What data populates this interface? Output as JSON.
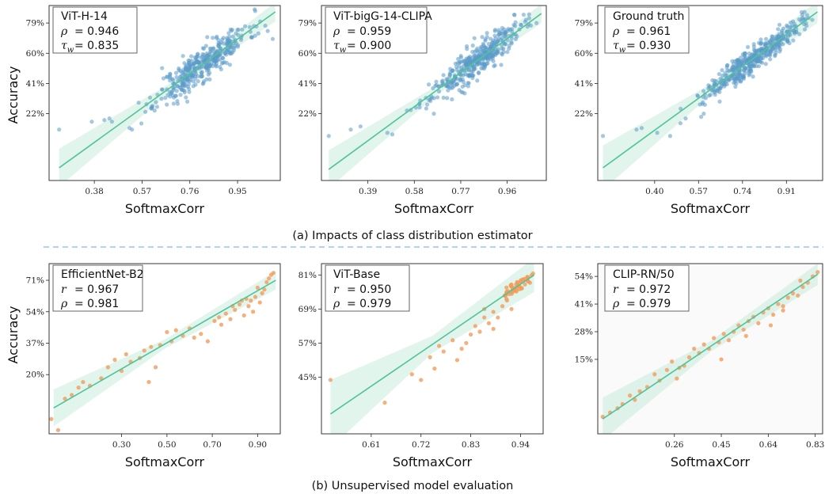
{
  "figure": {
    "caption_a": "(a) Impacts of class distribution estimator",
    "caption_b": "(b) Unsupervised model evaluation"
  },
  "chart_data": [
    {
      "type": "scatter",
      "panel": "a1",
      "xlabel": "SoftmaxCorr",
      "ylabel": "Accuracy",
      "xticks": [
        {
          "v": 0.38,
          "label": "0.38"
        },
        {
          "v": 0.57,
          "label": "0.57"
        },
        {
          "v": 0.76,
          "label": "0.76"
        },
        {
          "v": 0.95,
          "label": "0.95"
        }
      ],
      "yticks": [
        {
          "v": 22,
          "label": "22%"
        },
        {
          "v": 41,
          "label": "41%"
        },
        {
          "v": 60,
          "label": "60%"
        },
        {
          "v": 79,
          "label": "79%"
        }
      ],
      "xlim": [
        0.2,
        1.12
      ],
      "ylim": [
        -20,
        90
      ],
      "legend": {
        "title": "ViT-H-14",
        "stats": [
          {
            "sym": "ρ",
            "value": "= 0.946"
          },
          {
            "sym": "τw",
            "value": "= 0.835"
          }
        ]
      },
      "fit": {
        "x0": 0.24,
        "y0": -12,
        "x1": 1.1,
        "y1": 86,
        "band": 3.0
      },
      "cluster": {
        "cx": 0.81,
        "cy": 41,
        "sx": 0.09,
        "sy": 13,
        "n": 380,
        "noise": 5.5,
        "seed": 11
      },
      "extra_points": [
        [
          0.24,
          12
        ],
        [
          0.37,
          17
        ],
        [
          0.42,
          18
        ],
        [
          0.44,
          19
        ],
        [
          0.45,
          17
        ],
        [
          0.52,
          13
        ],
        [
          0.53,
          12
        ],
        [
          0.61,
          26
        ],
        [
          0.62,
          24
        ],
        [
          0.71,
          30
        ],
        [
          1.02,
          71
        ],
        [
          1.07,
          74
        ],
        [
          1.09,
          69
        ],
        [
          0.98,
          77
        ],
        [
          1.04,
          80
        ]
      ],
      "color": "#5b9bc9"
    },
    {
      "type": "scatter",
      "panel": "a2",
      "xlabel": "SoftmaxCorr",
      "ylabel": "",
      "xticks": [
        {
          "v": 0.39,
          "label": "0.39"
        },
        {
          "v": 0.58,
          "label": "0.58"
        },
        {
          "v": 0.77,
          "label": "0.77"
        },
        {
          "v": 0.96,
          "label": "0.96"
        }
      ],
      "yticks": [
        {
          "v": 22,
          "label": "22%"
        },
        {
          "v": 41,
          "label": "41%"
        },
        {
          "v": 60,
          "label": "60%"
        },
        {
          "v": 79,
          "label": "79%"
        }
      ],
      "xlim": [
        0.2,
        1.12
      ],
      "ylim": [
        -20,
        90
      ],
      "legend": {
        "title": "ViT-bigG-14-CLIPA",
        "stats": [
          {
            "sym": "ρ",
            "value": "= 0.959"
          },
          {
            "sym": "τw",
            "value": "= 0.900"
          }
        ]
      },
      "fit": {
        "x0": 0.23,
        "y0": -13,
        "x1": 1.1,
        "y1": 85,
        "band": 3.0
      },
      "cluster": {
        "cx": 0.83,
        "cy": 43,
        "sx": 0.09,
        "sy": 13,
        "n": 380,
        "noise": 5.0,
        "seed": 23
      },
      "extra_points": [
        [
          0.23,
          8
        ],
        [
          0.32,
          12
        ],
        [
          0.36,
          14
        ],
        [
          0.47,
          10
        ],
        [
          0.49,
          9
        ],
        [
          0.55,
          24
        ],
        [
          0.6,
          28
        ],
        [
          0.66,
          22
        ],
        [
          1.05,
          82
        ],
        [
          1.08,
          79
        ],
        [
          1.01,
          75
        ],
        [
          0.99,
          84
        ]
      ],
      "color": "#5b9bc9"
    },
    {
      "type": "scatter",
      "panel": "a3",
      "xlabel": "SoftmaxCorr",
      "ylabel": "",
      "xticks": [
        {
          "v": 0.4,
          "label": "0.40"
        },
        {
          "v": 0.57,
          "label": "0.57"
        },
        {
          "v": 0.74,
          "label": "0.74"
        },
        {
          "v": 0.91,
          "label": "0.91"
        }
      ],
      "yticks": [
        {
          "v": 22,
          "label": "22%"
        },
        {
          "v": 41,
          "label": "41%"
        },
        {
          "v": 60,
          "label": "60%"
        },
        {
          "v": 79,
          "label": "79%"
        }
      ],
      "xlim": [
        0.18,
        1.05
      ],
      "ylim": [
        -20,
        90
      ],
      "legend": {
        "title": "Ground truth",
        "stats": [
          {
            "sym": "ρ",
            "value": "= 0.961"
          },
          {
            "sym": "τw",
            "value": "= 0.930"
          }
        ]
      },
      "fit": {
        "x0": 0.2,
        "y0": -12,
        "x1": 1.03,
        "y1": 86,
        "band": 3.5
      },
      "cluster": {
        "cx": 0.78,
        "cy": 44,
        "sx": 0.09,
        "sy": 15,
        "n": 420,
        "noise": 4.0,
        "seed": 37
      },
      "extra_points": [
        [
          0.2,
          8
        ],
        [
          0.33,
          12
        ],
        [
          0.35,
          13
        ],
        [
          0.41,
          10
        ],
        [
          0.46,
          8
        ],
        [
          0.5,
          16
        ],
        [
          0.52,
          19
        ],
        [
          0.58,
          20
        ],
        [
          0.59,
          22
        ],
        [
          0.99,
          84
        ],
        [
          1.01,
          81
        ],
        [
          0.98,
          86
        ]
      ],
      "color": "#5b9bc9"
    },
    {
      "type": "scatter",
      "panel": "b1",
      "xlabel": "SoftmaxCorr",
      "ylabel": "Accuracy",
      "xticks": [
        {
          "v": 0.3,
          "label": "0.30"
        },
        {
          "v": 0.5,
          "label": "0.50"
        },
        {
          "v": 0.7,
          "label": "0.70"
        },
        {
          "v": 0.9,
          "label": "0.90"
        }
      ],
      "yticks": [
        {
          "v": 20,
          "label": "20%"
        },
        {
          "v": 37,
          "label": "37%"
        },
        {
          "v": 54,
          "label": "54%"
        },
        {
          "v": 71,
          "label": "71%"
        }
      ],
      "xlim": [
        -0.02,
        1.0
      ],
      "ylim": [
        -12,
        80
      ],
      "legend": {
        "title": "EfficientNet-B2",
        "stats": [
          {
            "sym": "r",
            "value": "= 0.967"
          },
          {
            "sym": "ρ",
            "value": "= 0.981"
          }
        ]
      },
      "fit": {
        "x0": 0.0,
        "y0": 2,
        "x1": 0.98,
        "y1": 71,
        "band": 2.5
      },
      "cluster": null,
      "extra_points": [
        [
          -0.01,
          -4
        ],
        [
          0.02,
          -10
        ],
        [
          0.05,
          7
        ],
        [
          0.08,
          9
        ],
        [
          0.11,
          13
        ],
        [
          0.13,
          16
        ],
        [
          0.16,
          14
        ],
        [
          0.21,
          18
        ],
        [
          0.24,
          24
        ],
        [
          0.27,
          28
        ],
        [
          0.3,
          22
        ],
        [
          0.32,
          31
        ],
        [
          0.34,
          27
        ],
        [
          0.38,
          29
        ],
        [
          0.4,
          33
        ],
        [
          0.42,
          16
        ],
        [
          0.43,
          35
        ],
        [
          0.45,
          24
        ],
        [
          0.47,
          36
        ],
        [
          0.5,
          43
        ],
        [
          0.52,
          38
        ],
        [
          0.54,
          44
        ],
        [
          0.57,
          41
        ],
        [
          0.6,
          45
        ],
        [
          0.62,
          40
        ],
        [
          0.65,
          42
        ],
        [
          0.68,
          38
        ],
        [
          0.71,
          49
        ],
        [
          0.73,
          51
        ],
        [
          0.76,
          53
        ],
        [
          0.78,
          50
        ],
        [
          0.8,
          55
        ],
        [
          0.82,
          58
        ],
        [
          0.84,
          52
        ],
        [
          0.86,
          57
        ],
        [
          0.87,
          60
        ],
        [
          0.89,
          62
        ],
        [
          0.91,
          59
        ],
        [
          0.92,
          64
        ],
        [
          0.93,
          66
        ],
        [
          0.94,
          70
        ],
        [
          0.95,
          72
        ],
        [
          0.96,
          74
        ],
        [
          0.97,
          75
        ],
        [
          0.88,
          54
        ],
        [
          0.85,
          61
        ],
        [
          0.79,
          57
        ],
        [
          0.74,
          47
        ],
        [
          0.9,
          67
        ],
        [
          0.83,
          60
        ]
      ],
      "color": "#f29b5a"
    },
    {
      "type": "scatter",
      "panel": "b2",
      "xlabel": "SoftmaxCorr",
      "ylabel": "",
      "xticks": [
        {
          "v": 0.61,
          "label": "0.61"
        },
        {
          "v": 0.72,
          "label": "0.72"
        },
        {
          "v": 0.83,
          "label": "0.83"
        },
        {
          "v": 0.94,
          "label": "0.94"
        }
      ],
      "yticks": [
        {
          "v": 45,
          "label": "45%"
        },
        {
          "v": 57,
          "label": "57%"
        },
        {
          "v": 69,
          "label": "69%"
        },
        {
          "v": 81,
          "label": "81%"
        }
      ],
      "xlim": [
        0.5,
        0.99
      ],
      "ylim": [
        25,
        85
      ],
      "legend": {
        "title": "ViT-Base",
        "stats": [
          {
            "sym": "r",
            "value": "= 0.950"
          },
          {
            "sym": "ρ",
            "value": "= 0.979"
          }
        ]
      },
      "fit": {
        "x0": 0.52,
        "y0": 32,
        "x1": 0.97,
        "y1": 81,
        "band": 3.0
      },
      "cluster": {
        "cx": 0.93,
        "cy": 78,
        "sx": 0.02,
        "sy": 2.5,
        "n": 45,
        "noise": 1.2,
        "seed": 51
      },
      "extra_points": [
        [
          0.52,
          44
        ],
        [
          0.64,
          36
        ],
        [
          0.7,
          46
        ],
        [
          0.72,
          44
        ],
        [
          0.74,
          52
        ],
        [
          0.75,
          48
        ],
        [
          0.76,
          56
        ],
        [
          0.77,
          54
        ],
        [
          0.79,
          58
        ],
        [
          0.8,
          51
        ],
        [
          0.81,
          55
        ],
        [
          0.83,
          60
        ],
        [
          0.84,
          63
        ],
        [
          0.85,
          61
        ],
        [
          0.86,
          66
        ],
        [
          0.87,
          64
        ],
        [
          0.88,
          68
        ],
        [
          0.89,
          66
        ],
        [
          0.9,
          70
        ],
        [
          0.91,
          72
        ],
        [
          0.92,
          69
        ],
        [
          0.82,
          57
        ],
        [
          0.86,
          69
        ],
        [
          0.88,
          62
        ]
      ],
      "color": "#f29b5a"
    },
    {
      "type": "scatter",
      "panel": "b3",
      "xlabel": "SoftmaxCorr",
      "ylabel": "",
      "xticks": [
        {
          "v": 0.26,
          "label": "0.26"
        },
        {
          "v": 0.45,
          "label": "0.45"
        },
        {
          "v": 0.64,
          "label": "0.64"
        },
        {
          "v": 0.83,
          "label": "0.83"
        }
      ],
      "yticks": [
        {
          "v": 15,
          "label": "15%"
        },
        {
          "v": 28,
          "label": "28%"
        },
        {
          "v": 41,
          "label": "41%"
        },
        {
          "v": 54,
          "label": "54%"
        }
      ],
      "xlim": [
        -0.05,
        0.86
      ],
      "ylim": [
        -20,
        60
      ],
      "legend": {
        "title": "CLIP-RN/50",
        "stats": [
          {
            "sym": "r",
            "value": "= 0.972"
          },
          {
            "sym": "ρ",
            "value": "= 0.979"
          }
        ]
      },
      "fit": {
        "x0": -0.03,
        "y0": -13,
        "x1": 0.84,
        "y1": 55,
        "band": 2.5
      },
      "cluster": null,
      "extra_points": [
        [
          -0.03,
          -12
        ],
        [
          0.0,
          -10
        ],
        [
          0.03,
          -8
        ],
        [
          0.05,
          -6
        ],
        [
          0.08,
          -2
        ],
        [
          0.1,
          -4
        ],
        [
          0.12,
          0
        ],
        [
          0.15,
          2
        ],
        [
          0.18,
          8
        ],
        [
          0.2,
          5
        ],
        [
          0.23,
          10
        ],
        [
          0.25,
          14
        ],
        [
          0.27,
          6
        ],
        [
          0.3,
          12
        ],
        [
          0.32,
          16
        ],
        [
          0.34,
          20
        ],
        [
          0.36,
          18
        ],
        [
          0.38,
          22
        ],
        [
          0.4,
          20
        ],
        [
          0.42,
          25
        ],
        [
          0.44,
          23
        ],
        [
          0.46,
          27
        ],
        [
          0.48,
          24
        ],
        [
          0.5,
          28
        ],
        [
          0.52,
          31
        ],
        [
          0.54,
          29
        ],
        [
          0.56,
          33
        ],
        [
          0.58,
          35
        ],
        [
          0.6,
          32
        ],
        [
          0.62,
          37
        ],
        [
          0.64,
          39
        ],
        [
          0.66,
          36
        ],
        [
          0.68,
          41
        ],
        [
          0.7,
          40
        ],
        [
          0.72,
          44
        ],
        [
          0.74,
          46
        ],
        [
          0.76,
          45
        ],
        [
          0.78,
          49
        ],
        [
          0.8,
          51
        ],
        [
          0.82,
          54
        ],
        [
          0.84,
          56
        ],
        [
          0.65,
          31
        ],
        [
          0.55,
          26
        ],
        [
          0.45,
          15
        ],
        [
          0.28,
          11
        ],
        [
          0.7,
          38
        ],
        [
          0.77,
          52
        ]
      ],
      "color": "#f29b5a"
    }
  ]
}
